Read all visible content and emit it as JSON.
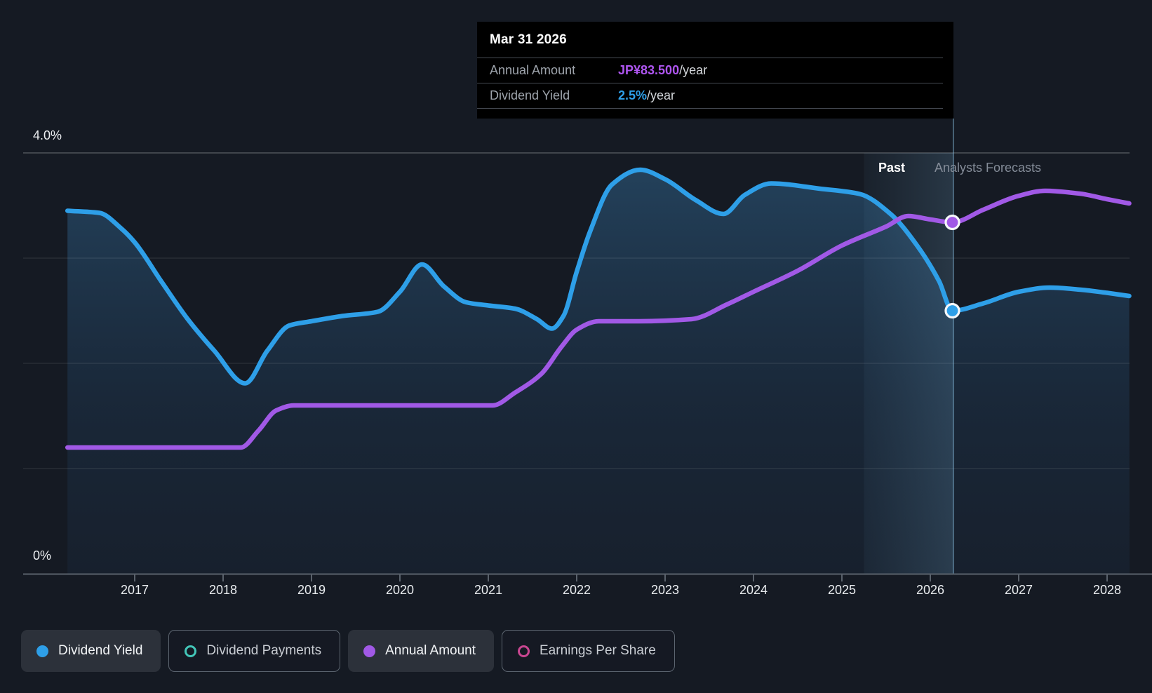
{
  "page": {
    "background_color": "#151A23"
  },
  "tooltip": {
    "title": "Mar 31 2026",
    "rows": [
      {
        "label": "Annual Amount",
        "value": "JP¥83.500",
        "suffix": "/year",
        "value_color": "#AE55F0"
      },
      {
        "label": "Dividend Yield",
        "value": "2.5%",
        "suffix": "/year",
        "value_color": "#2E9FE8"
      }
    ]
  },
  "y_axis": {
    "top_label": "4.0%",
    "bottom_label": "0%"
  },
  "x_axis": {
    "years": [
      "2017",
      "2018",
      "2019",
      "2020",
      "2021",
      "2022",
      "2023",
      "2024",
      "2025",
      "2026",
      "2027",
      "2028"
    ]
  },
  "annotations": {
    "past_label": "Past",
    "forecast_label": "Analysts Forecasts"
  },
  "legend": [
    {
      "label": "Dividend Yield",
      "marker": "filled",
      "color": "#2E9FE8",
      "selected": true
    },
    {
      "label": "Dividend Payments",
      "marker": "ring",
      "color": "#43C6B8",
      "selected": false
    },
    {
      "label": "Annual Amount",
      "marker": "filled",
      "color": "#A159E6",
      "selected": true
    },
    {
      "label": "Earnings Per Share",
      "marker": "ring",
      "color": "#C94691",
      "selected": false
    }
  ],
  "chart_data": {
    "type": "line",
    "title": "Dividend yield and annual amount, past and analysts forecasts",
    "xlim": [
      2016.24,
      2028.25
    ],
    "ylim_percent": [
      0,
      4
    ],
    "ylim_amount_jpy": [
      0,
      100
    ],
    "grid_percent": [
      1,
      2,
      3,
      4
    ],
    "grid_on": true,
    "highlight_band": {
      "from": 2025.25,
      "to": 2026.26
    },
    "divider_x": 2026.26,
    "series": [
      {
        "name": "Dividend Yield",
        "unit": "%",
        "color": "#2E9FE8",
        "area": true,
        "points": [
          [
            2016.24,
            3.45
          ],
          [
            2016.6,
            3.43
          ],
          [
            2016.85,
            3.28
          ],
          [
            2017.0,
            3.15
          ],
          [
            2017.3,
            2.78
          ],
          [
            2017.6,
            2.42
          ],
          [
            2017.9,
            2.12
          ],
          [
            2018.25,
            1.81
          ],
          [
            2018.5,
            2.12
          ],
          [
            2018.75,
            2.36
          ],
          [
            2019.0,
            2.4
          ],
          [
            2019.35,
            2.45
          ],
          [
            2019.75,
            2.49
          ],
          [
            2020.0,
            2.68
          ],
          [
            2020.25,
            2.94
          ],
          [
            2020.5,
            2.73
          ],
          [
            2020.75,
            2.58
          ],
          [
            2021.0,
            2.55
          ],
          [
            2021.3,
            2.52
          ],
          [
            2021.55,
            2.42
          ],
          [
            2021.72,
            2.33
          ],
          [
            2021.85,
            2.45
          ],
          [
            2022.0,
            2.87
          ],
          [
            2022.15,
            3.25
          ],
          [
            2022.4,
            3.7
          ],
          [
            2022.72,
            3.84
          ],
          [
            2023.0,
            3.75
          ],
          [
            2023.35,
            3.55
          ],
          [
            2023.66,
            3.42
          ],
          [
            2023.9,
            3.6
          ],
          [
            2024.2,
            3.71
          ],
          [
            2024.75,
            3.66
          ],
          [
            2025.2,
            3.61
          ],
          [
            2025.55,
            3.42
          ],
          [
            2025.85,
            3.12
          ],
          [
            2026.1,
            2.78
          ],
          [
            2026.25,
            2.5
          ],
          [
            2026.6,
            2.57
          ],
          [
            2027.0,
            2.68
          ],
          [
            2027.35,
            2.72
          ],
          [
            2027.7,
            2.7
          ],
          [
            2028.0,
            2.67
          ],
          [
            2028.25,
            2.64
          ]
        ]
      },
      {
        "name": "Annual Amount",
        "unit": "JP¥",
        "color": "#A159E6",
        "area": false,
        "points": [
          [
            2016.24,
            30
          ],
          [
            2017.0,
            30
          ],
          [
            2017.6,
            30
          ],
          [
            2018.2,
            30
          ],
          [
            2018.4,
            34
          ],
          [
            2018.6,
            38.8
          ],
          [
            2018.8,
            40
          ],
          [
            2019.4,
            40
          ],
          [
            2020.0,
            40
          ],
          [
            2020.6,
            40
          ],
          [
            2021.05,
            40
          ],
          [
            2021.3,
            43
          ],
          [
            2021.6,
            47.5
          ],
          [
            2021.83,
            54
          ],
          [
            2022.0,
            58
          ],
          [
            2022.25,
            60
          ],
          [
            2022.7,
            60
          ],
          [
            2023.3,
            60.5
          ],
          [
            2023.7,
            64
          ],
          [
            2024.0,
            67
          ],
          [
            2024.5,
            72
          ],
          [
            2025.0,
            78
          ],
          [
            2025.5,
            82.5
          ],
          [
            2025.75,
            85
          ],
          [
            2026.0,
            84.2
          ],
          [
            2026.25,
            83.5
          ],
          [
            2026.6,
            86.5
          ],
          [
            2027.0,
            89.8
          ],
          [
            2027.3,
            91
          ],
          [
            2027.7,
            90.3
          ],
          [
            2028.0,
            89
          ],
          [
            2028.25,
            88
          ]
        ]
      }
    ],
    "markers": [
      {
        "series": "Dividend Yield",
        "x": 2026.25,
        "value": 2.5
      },
      {
        "series": "Annual Amount",
        "x": 2026.25,
        "value": 83.5
      }
    ],
    "legend_position": "bottom"
  }
}
